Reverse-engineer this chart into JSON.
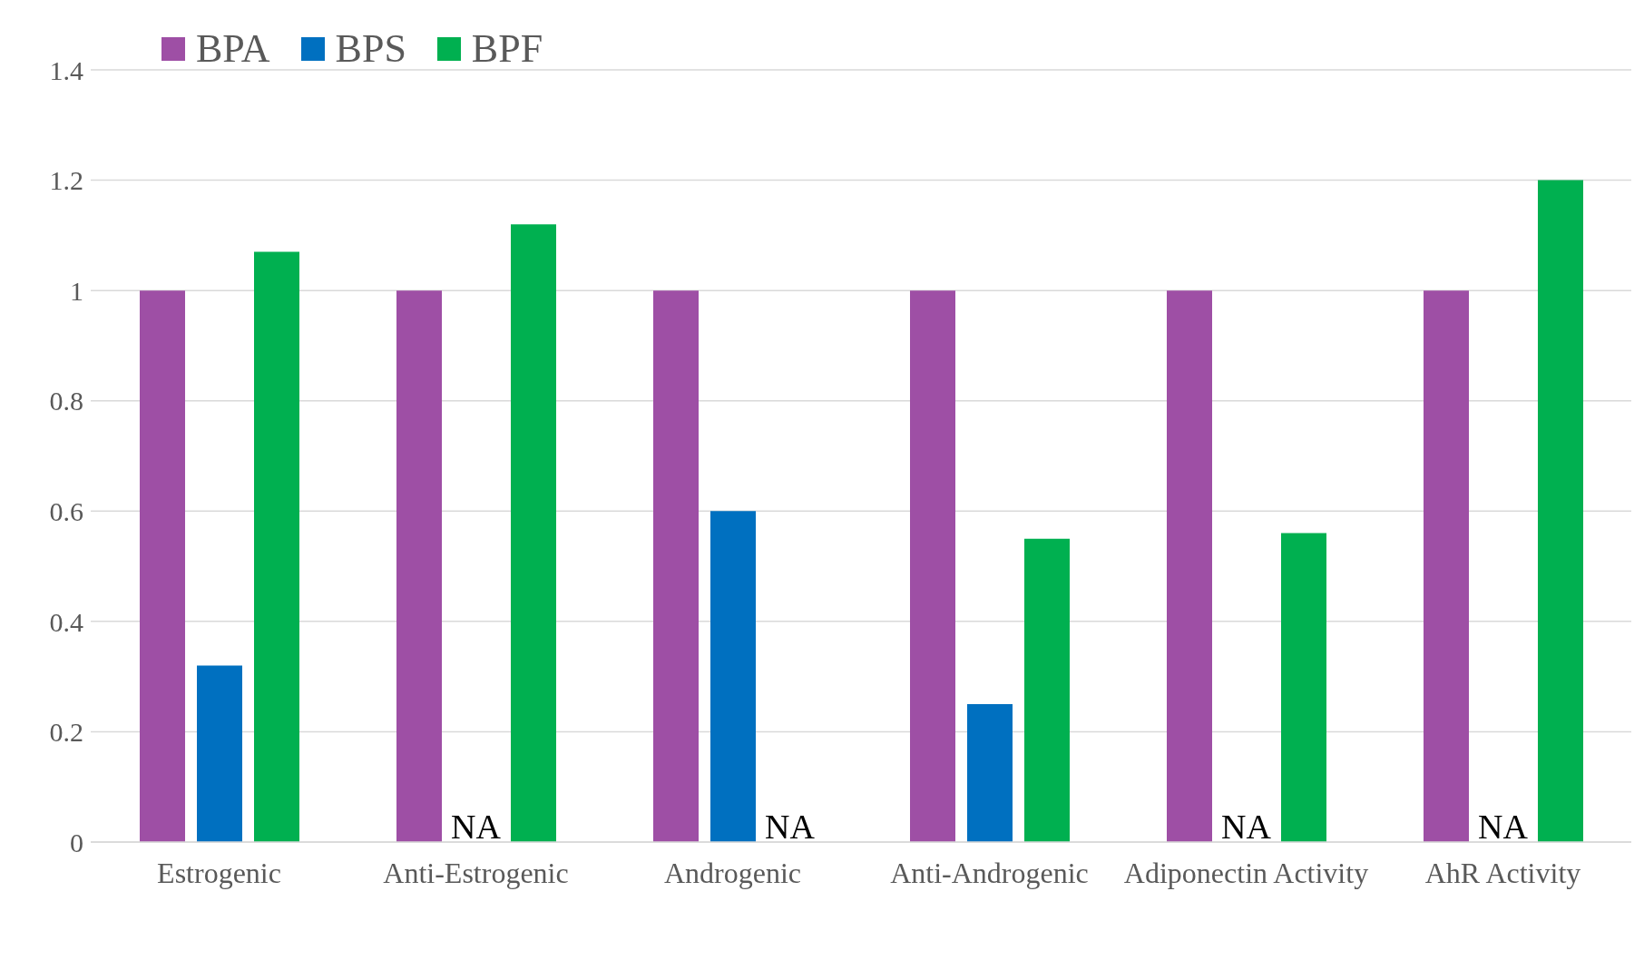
{
  "chart_data": {
    "type": "bar",
    "categories": [
      "Estrogenic",
      "Anti-Estrogenic",
      "Androgenic",
      "Anti-Androgenic",
      "Adiponectin Activity",
      "AhR Activity"
    ],
    "series": [
      {
        "name": "BPA",
        "color": "#9e4fa5",
        "values": [
          1,
          1,
          1,
          1,
          1,
          1
        ]
      },
      {
        "name": "BPS",
        "color": "#0070c0",
        "values": [
          0.32,
          null,
          0.6,
          0.25,
          null,
          null
        ]
      },
      {
        "name": "BPF",
        "color": "#00b050",
        "values": [
          1.07,
          1.12,
          null,
          0.55,
          0.56,
          1.2
        ]
      }
    ],
    "ylim": [
      0,
      1.4
    ],
    "yticks": [
      0,
      0.2,
      0.4,
      0.6,
      0.8,
      1,
      1.2,
      1.4
    ],
    "grid": "y",
    "legend": "top left",
    "annotations": [
      "NA",
      "NA",
      "NA",
      "NA"
    ]
  }
}
